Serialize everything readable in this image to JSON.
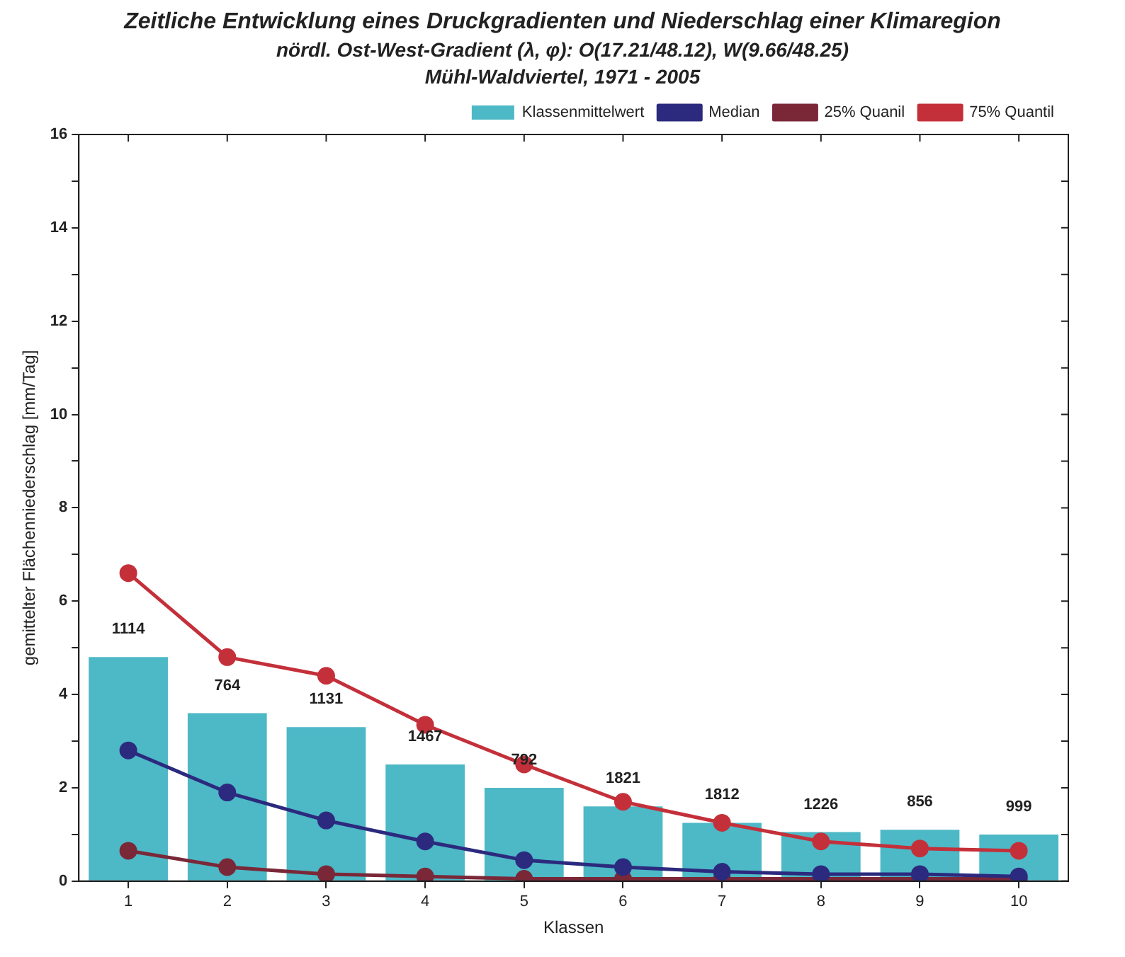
{
  "chart_data": {
    "type": "bar",
    "title": "Zeitliche Entwicklung eines Druckgradienten und Niederschlag einer Klimaregion",
    "subtitle": "nördl. Ost-West-Gradient (λ, φ): O(17.21/48.12), W(9.66/48.25)\nMühl-Waldviertel, 1971 - 2005",
    "xlabel": "Klassen",
    "ylabel": "gemittelter Flächenniederschlag [mm/Tag]",
    "categories": [
      "1",
      "2",
      "3",
      "4",
      "5",
      "6",
      "7",
      "8",
      "9",
      "10"
    ],
    "series": [
      {
        "name": "Klassenmittelwert",
        "color": "#4db8c6",
        "values": [
          4.8,
          3.6,
          3.3,
          2.5,
          2.0,
          1.6,
          1.25,
          1.05,
          1.1,
          1.0
        ]
      },
      {
        "name": "Median",
        "type": "line",
        "color": "#2b2a7e",
        "values": [
          2.8,
          1.9,
          1.3,
          0.85,
          0.45,
          0.3,
          0.2,
          0.15,
          0.15,
          0.1
        ]
      },
      {
        "name": "25% Quanil",
        "type": "line",
        "color": "#7a2838",
        "values": [
          0.65,
          0.3,
          0.15,
          0.1,
          0.05,
          0.05,
          0.05,
          0.05,
          0.05,
          0.05
        ]
      },
      {
        "name": "75% Quantil",
        "type": "line",
        "color": "#c4303a",
        "values": [
          6.6,
          4.8,
          4.4,
          3.35,
          2.5,
          1.7,
          1.25,
          0.85,
          0.7,
          0.65
        ]
      }
    ],
    "ylim": [
      0,
      16
    ],
    "yticks": [
      0,
      {
        "value": 1,
        "label": null
      },
      2,
      {
        "value": 3,
        "label": null
      },
      4,
      {
        "value": 5,
        "label": null
      },
      6,
      {
        "value": 7,
        "label": null
      },
      8,
      {
        "value": 9,
        "label": null
      },
      10,
      {
        "value": 11,
        "label": null
      },
      12,
      {
        "value": 13,
        "label": null
      },
      14,
      {
        "value": 15,
        "label": null
      },
      16
    ],
    "annotations": [
      {
        "text": "1114",
        "x": "1",
        "y": 4.8
      },
      {
        "text": "764",
        "x": "2",
        "y": 3.6
      },
      {
        "text": "1131",
        "x": "3",
        "y": 3.3
      },
      {
        "text": "1467",
        "x": "4",
        "y": 2.5
      },
      {
        "text": "792",
        "x": "5",
        "y": 2.0
      },
      {
        "text": "1821",
        "x": "6",
        "y": 1.6
      },
      {
        "text": "1812",
        "x": "7",
        "y": 1.25
      },
      {
        "text": "1226",
        "x": "8",
        "y": 1.05
      },
      {
        "text": "856",
        "x": "9",
        "y": 1.1
      },
      {
        "text": "999",
        "x": "10",
        "y": 1.0
      }
    ],
    "grid": false,
    "legend": "top right",
    "marker": "circle",
    "line_style": "solid"
  }
}
